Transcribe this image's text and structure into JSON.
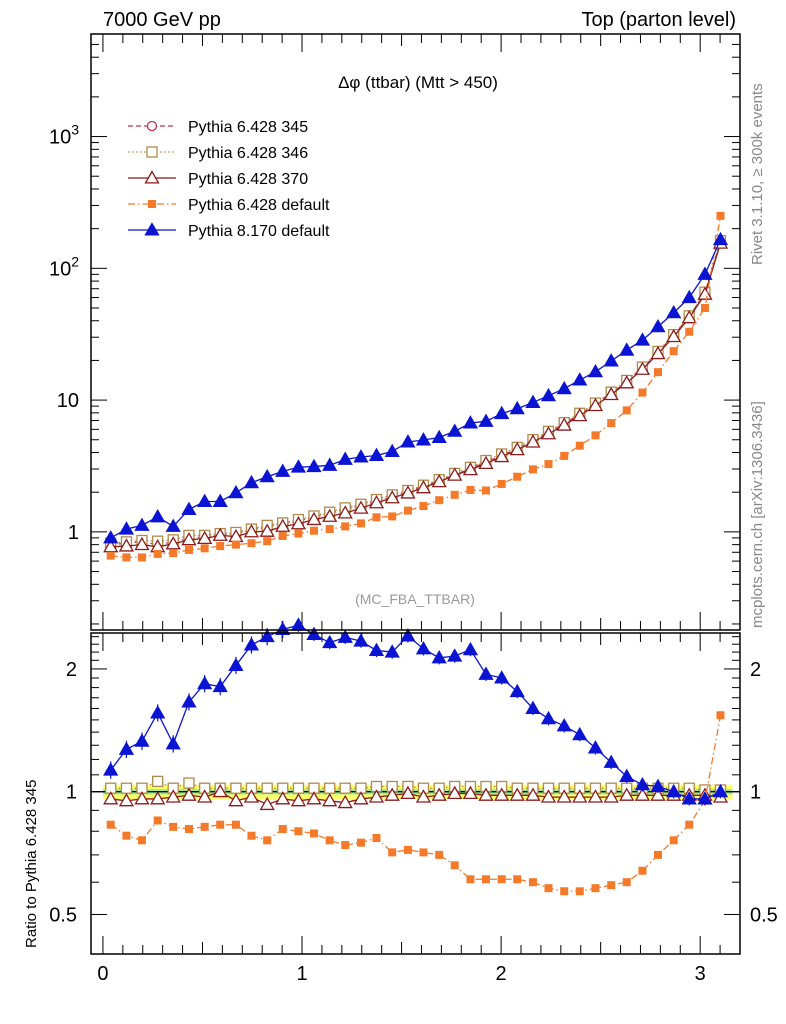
{
  "header": {
    "left_title": "7000 GeV pp",
    "right_title": "Top (parton level)"
  },
  "plot_title": "Δφ (ttbar) (Mtt > 450)",
  "watermark": "(MC_FBA_TTBAR)",
  "side_label_top": "Rivet 3.1.10, ≥ 300k events",
  "side_label_bottom": "mcplots.cern.ch [arXiv:1306.3436]",
  "ratio_ylabel": "Ratio to Pythia 6.428 345",
  "chart_data": [
    {
      "type": "line",
      "panel": "main",
      "yscale": "log",
      "xlim": [
        -0.06,
        3.2
      ],
      "ylim": [
        0.18,
        6000
      ],
      "yticks": [
        1,
        10,
        100,
        1000
      ],
      "ytick_labels": [
        "1",
        "10",
        "10^2",
        "10^3"
      ],
      "legend_position": "top-left",
      "x": [
        0.039,
        0.118,
        0.196,
        0.275,
        0.353,
        0.432,
        0.511,
        0.589,
        0.668,
        0.746,
        0.825,
        0.903,
        0.982,
        1.06,
        1.139,
        1.217,
        1.296,
        1.374,
        1.453,
        1.532,
        1.61,
        1.689,
        1.767,
        1.846,
        1.924,
        2.003,
        2.081,
        2.16,
        2.238,
        2.317,
        2.395,
        2.474,
        2.553,
        2.631,
        2.71,
        2.788,
        2.867,
        2.945,
        3.024,
        3.102
      ],
      "series": [
        {
          "name": "Pythia 6.428 345",
          "color": "#c0304a",
          "marker": "open-circle",
          "line": "dashed",
          "values": [
            0.8,
            0.82,
            0.84,
            0.8,
            0.84,
            0.89,
            0.92,
            0.94,
            0.97,
            1.03,
            1.09,
            1.15,
            1.21,
            1.29,
            1.38,
            1.48,
            1.58,
            1.71,
            1.85,
            2.0,
            2.22,
            2.44,
            2.7,
            3.01,
            3.38,
            3.8,
            4.3,
            4.92,
            5.68,
            6.62,
            7.8,
            9.32,
            11.3,
            13.8,
            17.5,
            23.0,
            31.0,
            43.0,
            65.0,
            160
          ]
        },
        {
          "name": "Pythia 6.428 346",
          "color": "#b08a4a",
          "marker": "open-square",
          "line": "dotted",
          "values": [
            0.82,
            0.84,
            0.86,
            0.85,
            0.87,
            0.94,
            0.94,
            0.97,
            0.99,
            1.05,
            1.12,
            1.17,
            1.24,
            1.32,
            1.41,
            1.52,
            1.62,
            1.76,
            1.91,
            2.06,
            2.26,
            2.49,
            2.78,
            3.09,
            3.48,
            3.9,
            4.38,
            5.01,
            5.79,
            6.74,
            7.94,
            9.49,
            11.5,
            14.1,
            17.8,
            23.4,
            31.4,
            43.6,
            65.9,
            162
          ]
        },
        {
          "name": "Pythia 6.428 370",
          "color": "#8b1a1a",
          "marker": "open-triangle",
          "line": "solid",
          "values": [
            0.77,
            0.78,
            0.8,
            0.77,
            0.81,
            0.87,
            0.89,
            0.94,
            0.92,
            1.0,
            1.01,
            1.1,
            1.15,
            1.24,
            1.31,
            1.39,
            1.51,
            1.66,
            1.81,
            1.97,
            2.16,
            2.4,
            2.69,
            2.96,
            3.3,
            3.72,
            4.2,
            4.8,
            5.54,
            6.45,
            7.61,
            9.08,
            11.0,
            13.5,
            17.1,
            22.5,
            30.3,
            42.1,
            63.5,
            155
          ]
        },
        {
          "name": "Pythia 6.428 default",
          "color": "#f47a2a",
          "marker": "filled-square",
          "line": "dashdot",
          "values": [
            0.66,
            0.64,
            0.64,
            0.68,
            0.69,
            0.73,
            0.75,
            0.78,
            0.8,
            0.82,
            0.85,
            0.93,
            0.97,
            1.02,
            1.05,
            1.1,
            1.16,
            1.29,
            1.31,
            1.45,
            1.57,
            1.74,
            1.91,
            2.08,
            2.06,
            2.31,
            2.62,
            2.98,
            3.27,
            3.77,
            4.51,
            5.4,
            6.69,
            8.35,
            11.4,
            16.3,
            23.5,
            33.0,
            50.0,
            250
          ]
        },
        {
          "name": "Pythia 8.170 default",
          "color": "#0a14d2",
          "marker": "filled-triangle",
          "line": "solid",
          "values": [
            0.9,
            1.05,
            1.12,
            1.3,
            1.1,
            1.48,
            1.7,
            1.7,
            1.98,
            2.36,
            2.62,
            2.88,
            3.1,
            3.13,
            3.2,
            3.55,
            3.7,
            3.8,
            4.07,
            4.81,
            4.98,
            5.2,
            5.8,
            6.7,
            6.9,
            7.9,
            8.6,
            9.6,
            10.8,
            12.2,
            14.2,
            16.4,
            19.8,
            23.9,
            28.5,
            36.0,
            46.0,
            60.0,
            90.0,
            165
          ]
        }
      ]
    },
    {
      "type": "line",
      "panel": "ratio",
      "xlabel": "",
      "ylabel": "Ratio to Pythia 6.428 345",
      "yscale": "log",
      "xlim": [
        -0.06,
        3.2
      ],
      "ylim": [
        0.4,
        2.45
      ],
      "yticks": [
        0.5,
        1,
        2
      ],
      "ytick_labels": [
        "0.5",
        "1",
        "2"
      ],
      "xticks": [
        0,
        1,
        2,
        3
      ],
      "xtick_labels": [
        "0",
        "1",
        "2",
        "3"
      ],
      "band": {
        "lower": 0.96,
        "upper": 1.04,
        "inner_lower": 0.985,
        "inner_upper": 1.015,
        "outer_color": "#ffff66",
        "inner_color": "#99ee99"
      },
      "series": [
        {
          "name": "Pythia 6.428 346",
          "color": "#b08a4a",
          "marker": "open-square",
          "line": "dotted",
          "values": [
            1.02,
            1.02,
            1.02,
            1.06,
            1.02,
            1.05,
            1.02,
            1.02,
            1.02,
            1.02,
            1.02,
            1.02,
            1.02,
            1.02,
            1.02,
            1.02,
            1.02,
            1.03,
            1.03,
            1.03,
            1.02,
            1.02,
            1.03,
            1.03,
            1.03,
            1.03,
            1.02,
            1.02,
            1.02,
            1.02,
            1.02,
            1.02,
            1.02,
            1.02,
            1.02,
            1.02,
            1.02,
            1.02,
            1.01,
            1.01
          ]
        },
        {
          "name": "Pythia 6.428 370",
          "color": "#8b1a1a",
          "marker": "open-triangle",
          "line": "solid",
          "values": [
            0.96,
            0.95,
            0.96,
            0.96,
            0.97,
            0.98,
            0.97,
            1.0,
            0.95,
            0.97,
            0.93,
            0.96,
            0.95,
            0.96,
            0.95,
            0.94,
            0.96,
            0.97,
            0.98,
            0.99,
            0.97,
            0.98,
            0.99,
            0.99,
            0.98,
            0.98,
            0.98,
            0.98,
            0.97,
            0.97,
            0.97,
            0.97,
            0.97,
            0.98,
            0.98,
            0.98,
            0.98,
            0.98,
            0.98,
            0.97
          ]
        },
        {
          "name": "Pythia 6.428 default",
          "color": "#f47a2a",
          "marker": "filled-square",
          "line": "dashdot",
          "values": [
            0.83,
            0.78,
            0.76,
            0.85,
            0.82,
            0.81,
            0.82,
            0.83,
            0.83,
            0.78,
            0.76,
            0.81,
            0.8,
            0.79,
            0.76,
            0.74,
            0.75,
            0.77,
            0.71,
            0.72,
            0.71,
            0.7,
            0.66,
            0.61,
            0.61,
            0.61,
            0.61,
            0.6,
            0.58,
            0.57,
            0.57,
            0.58,
            0.59,
            0.6,
            0.64,
            0.7,
            0.76,
            0.83,
            0.95,
            1.54
          ]
        },
        {
          "name": "Pythia 8.170 default",
          "color": "#0a14d2",
          "marker": "filled-triangle",
          "line": "solid",
          "values": [
            1.13,
            1.27,
            1.33,
            1.56,
            1.31,
            1.66,
            1.84,
            1.81,
            2.04,
            2.29,
            2.4,
            2.5,
            2.56,
            2.43,
            2.32,
            2.39,
            2.34,
            2.22,
            2.2,
            2.41,
            2.24,
            2.13,
            2.15,
            2.23,
            1.94,
            1.9,
            1.76,
            1.6,
            1.51,
            1.45,
            1.38,
            1.28,
            1.18,
            1.09,
            1.04,
            1.03,
            1.0,
            0.96,
            0.96,
            1.0
          ]
        }
      ]
    }
  ]
}
